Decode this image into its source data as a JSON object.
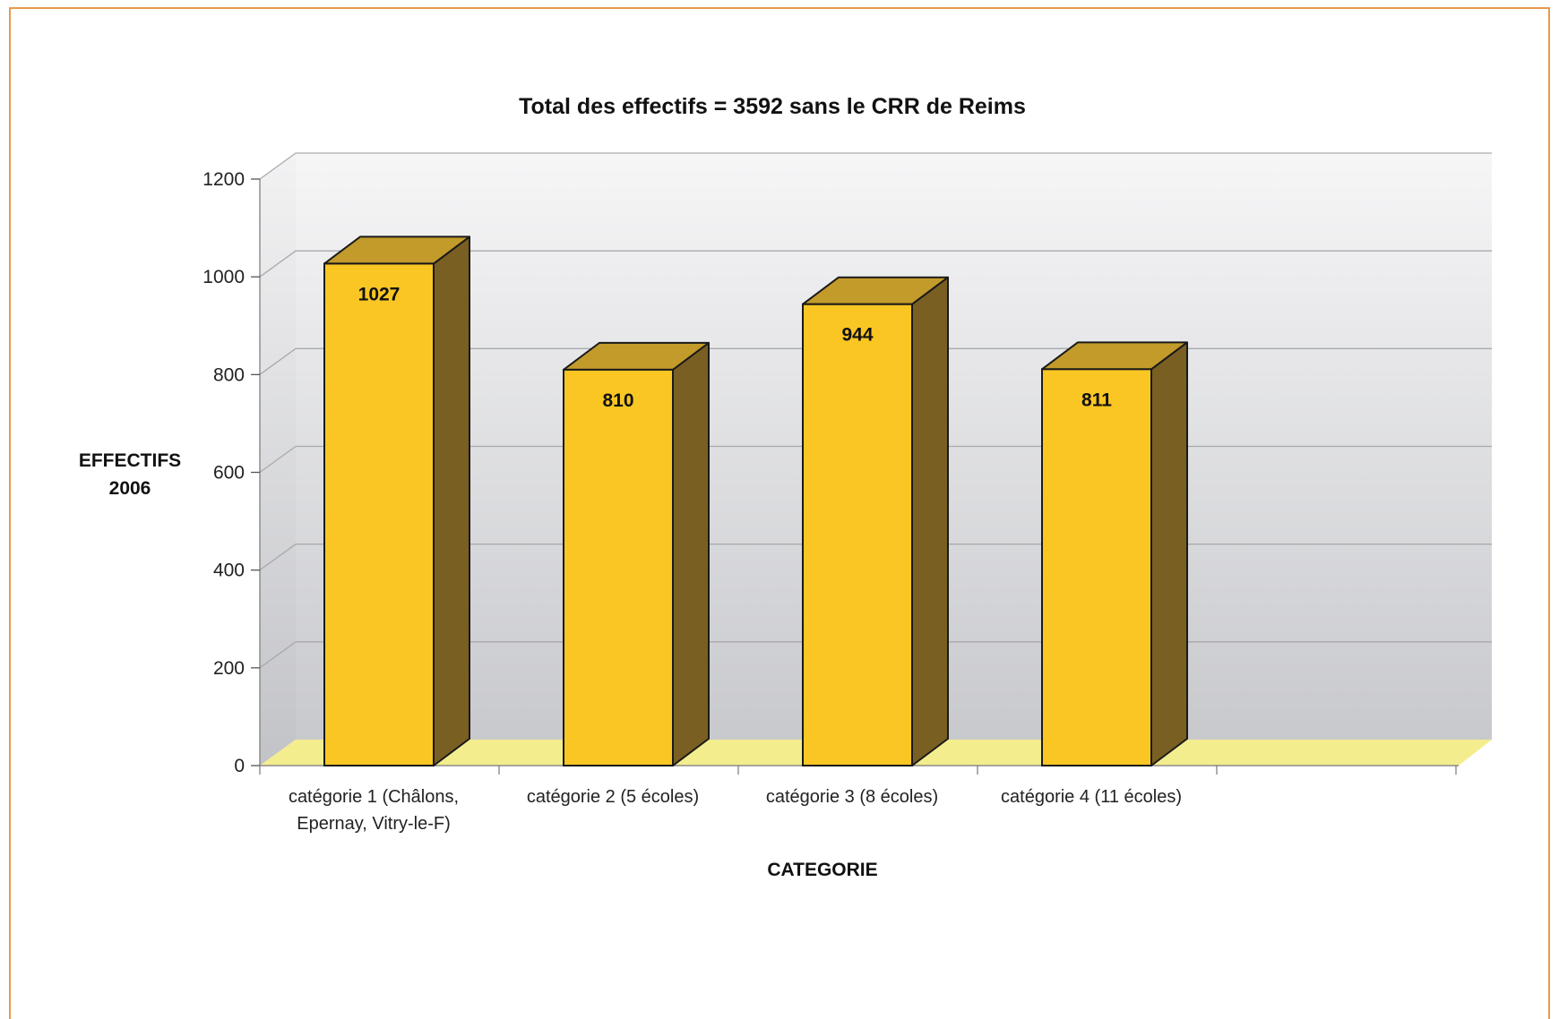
{
  "chart_data": {
    "type": "bar",
    "title": "Total des effectifs = 3592 sans le CRR de Reims",
    "ylabel_lines": [
      "EFFECTIFS",
      "2006"
    ],
    "xlabel": "CATEGORIE",
    "categories": [
      [
        "catégorie 1 (Châlons,",
        "Epernay, Vitry-le-F)"
      ],
      [
        "catégorie 2 (5 écoles)"
      ],
      [
        "catégorie 3 (8 écoles)"
      ],
      [
        "catégorie 4 (11 écoles)"
      ]
    ],
    "values": [
      1027,
      810,
      944,
      811
    ],
    "ylim": [
      0,
      1200
    ],
    "yticks": [
      0,
      200,
      400,
      600,
      800,
      1000,
      1200
    ],
    "grid": true,
    "legend": "none",
    "colors": {
      "bar_front": "#f9c624",
      "bar_side": "#7a5f22",
      "bar_top": "#c39b2b",
      "floor": "#f3ed8e",
      "wall_top": "#f4f4f6",
      "wall_bottom": "#c9cace",
      "frame": "#e59a4c"
    }
  }
}
